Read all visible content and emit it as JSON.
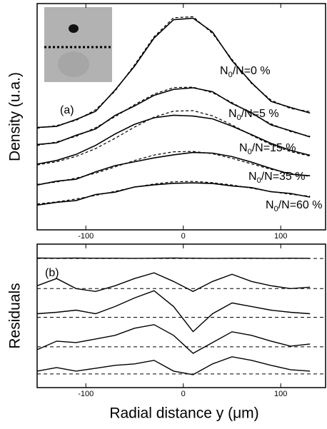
{
  "chart_data": [
    {
      "type": "line",
      "panel_label": "(a)",
      "ylabel": "Density (u.a.)",
      "xlim": [
        -150,
        146
      ],
      "ylim": [
        0,
        105
      ],
      "xticks": [
        -100,
        0,
        100
      ],
      "x": [
        -150,
        -130,
        -110,
        -90,
        -70,
        -50,
        -30,
        -10,
        10,
        30,
        50,
        70,
        90,
        110,
        130
      ],
      "series": [
        {
          "label": {
            "n": "N",
            "sub": "0",
            "rest": "/N=0 %"
          },
          "values": [
            47.5,
            48.0,
            51.2,
            55.0,
            64.9,
            76.0,
            89.0,
            97.5,
            98.2,
            91.8,
            78.5,
            68.3,
            59.6,
            56.8,
            54.2
          ],
          "fit": [
            47.2,
            48.4,
            50.8,
            55.7,
            64.4,
            76.6,
            89.6,
            98.4,
            98.9,
            91.1,
            79.1,
            67.9,
            60.2,
            56.3,
            54.9
          ]
        },
        {
          "label": {
            "n": "N",
            "sub": "0",
            "rest": "/N=5 %"
          },
          "values": [
            39.6,
            40.4,
            43.9,
            46.8,
            53.1,
            57.5,
            62.4,
            65.2,
            65.9,
            64.1,
            58.6,
            54.4,
            48.7,
            46.0,
            43.1
          ],
          "fit": [
            39.2,
            40.8,
            43.4,
            47.4,
            52.5,
            58.1,
            63.0,
            66.0,
            66.2,
            63.6,
            59.1,
            53.9,
            49.2,
            45.6,
            43.4
          ]
        },
        {
          "label": {
            "n": "N",
            "sub": "0",
            "rest": "/N=15 %"
          },
          "values": [
            30.5,
            32.2,
            35.0,
            39.2,
            44.5,
            49.0,
            52.0,
            53.2,
            52.8,
            51.5,
            48.1,
            44.2,
            40.1,
            36.9,
            34.6
          ],
          "fit": [
            30.1,
            31.6,
            34.1,
            37.7,
            42.5,
            47.7,
            52.3,
            55.1,
            55.3,
            52.9,
            48.7,
            43.9,
            39.5,
            36.3,
            34.2
          ]
        },
        {
          "label": {
            "n": "N",
            "sub": "0",
            "rest": "/N=35 %"
          },
          "values": [
            20.8,
            22.6,
            23.5,
            26.9,
            29.8,
            31.6,
            33.4,
            34.8,
            35.9,
            35.6,
            34.0,
            31.4,
            28.5,
            25.8,
            25.1
          ],
          "fit": [
            21.1,
            22.2,
            24.0,
            26.3,
            29.2,
            32.2,
            34.7,
            36.2,
            36.4,
            35.3,
            33.2,
            30.6,
            28.1,
            26.2,
            24.8
          ]
        },
        {
          "label": {
            "n": "N",
            "sub": "0",
            "rest": "/N=60 %"
          },
          "values": [
            11.5,
            12.8,
            13.6,
            16.4,
            17.5,
            19.9,
            20.9,
            21.6,
            21.8,
            21.5,
            20.4,
            19.6,
            17.7,
            16.9,
            15.2
          ],
          "fit": [
            12.0,
            13.0,
            14.3,
            16.0,
            17.9,
            19.8,
            21.3,
            22.3,
            22.5,
            21.9,
            20.8,
            19.3,
            17.8,
            16.5,
            15.6
          ]
        }
      ]
    },
    {
      "type": "line",
      "panel_label": "(b)",
      "ylabel": "Residuals",
      "xlabel": "Radial distance y (μm)",
      "xlim": [
        -150,
        146
      ],
      "ylim": [
        0,
        100
      ],
      "xticks": [
        -100,
        0,
        100
      ],
      "x": [
        -150,
        -130,
        -110,
        -90,
        -70,
        -50,
        -30,
        -10,
        10,
        30,
        50,
        70,
        90,
        110,
        130
      ],
      "series": [
        {
          "offset": 90,
          "values": [
            0.3,
            0.2,
            0.3,
            0.2,
            0.2,
            0.1,
            0.2,
            0.3,
            0.2,
            0.1,
            0.2,
            0.2,
            0.1,
            0.2,
            0.1
          ]
        },
        {
          "offset": 69,
          "values": [
            2,
            7,
            0,
            -2,
            2,
            7,
            11,
            5,
            -2,
            5,
            10,
            5,
            2,
            0,
            1
          ]
        },
        {
          "offset": 49,
          "values": [
            2.5,
            3.5,
            5,
            2.5,
            7.5,
            13.5,
            18.5,
            7.5,
            -10,
            2.5,
            10,
            7.5,
            5,
            3.5,
            2.5
          ]
        },
        {
          "offset": 28.4,
          "values": [
            -2,
            4,
            3,
            5.5,
            8,
            13,
            15.5,
            8,
            -4.5,
            3,
            10.5,
            8,
            4,
            0.5,
            2
          ]
        },
        {
          "offset": 9.5,
          "values": [
            2,
            4.5,
            2,
            4,
            6,
            7,
            9.5,
            2,
            -0.5,
            7,
            12,
            9.5,
            6,
            3,
            2
          ]
        }
      ]
    }
  ]
}
